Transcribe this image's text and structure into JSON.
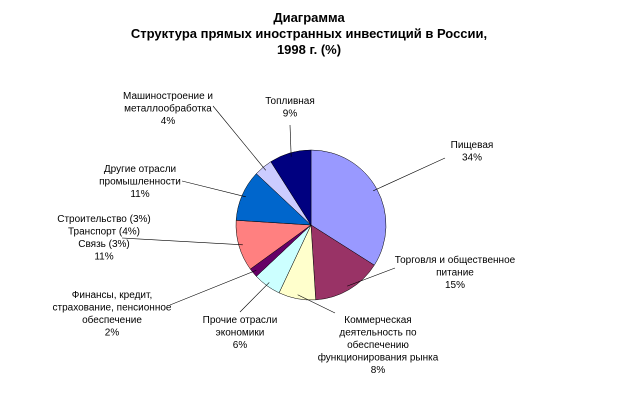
{
  "chart_data": {
    "type": "pie",
    "title": [
      "Диаграмма",
      "Структура прямых иностранных инвестиций в России,",
      "1998 г. (%)"
    ],
    "start": "12 o'clock, clockwise",
    "slices": [
      {
        "label": [
          "Пищевая",
          "34%"
        ],
        "value": 34,
        "color": "#9999FF"
      },
      {
        "label": [
          "Торговля и общественное",
          "питание",
          "15%"
        ],
        "value": 15,
        "color": "#993366"
      },
      {
        "label": [
          "Коммерческая",
          "деятельность по",
          "обеспечению",
          "функционирования рынка",
          "8%"
        ],
        "value": 8,
        "color": "#FFFFCC"
      },
      {
        "label": [
          "Прочие отрасли",
          "экономики",
          "6%"
        ],
        "value": 6,
        "color": "#CCFFFF"
      },
      {
        "label": [
          "Финансы, кредит,",
          "страхование, пенсионное",
          "обеспечение",
          "2%"
        ],
        "value": 2,
        "color": "#660066"
      },
      {
        "label": [
          "Строительство (3%)",
          "Транспорт (4%)",
          "Связь (3%)",
          "11%"
        ],
        "value": 11,
        "color": "#FF8080"
      },
      {
        "label": [
          "Другие отрасли",
          "промышленности",
          "11%"
        ],
        "value": 11,
        "color": "#0066CC"
      },
      {
        "label": [
          "Машиностроение и",
          "металлообработка",
          "4%"
        ],
        "value": 4,
        "color": "#CCCCFF"
      },
      {
        "label": [
          "Топливная",
          "9%"
        ],
        "value": 9,
        "color": "#000080"
      }
    ]
  }
}
